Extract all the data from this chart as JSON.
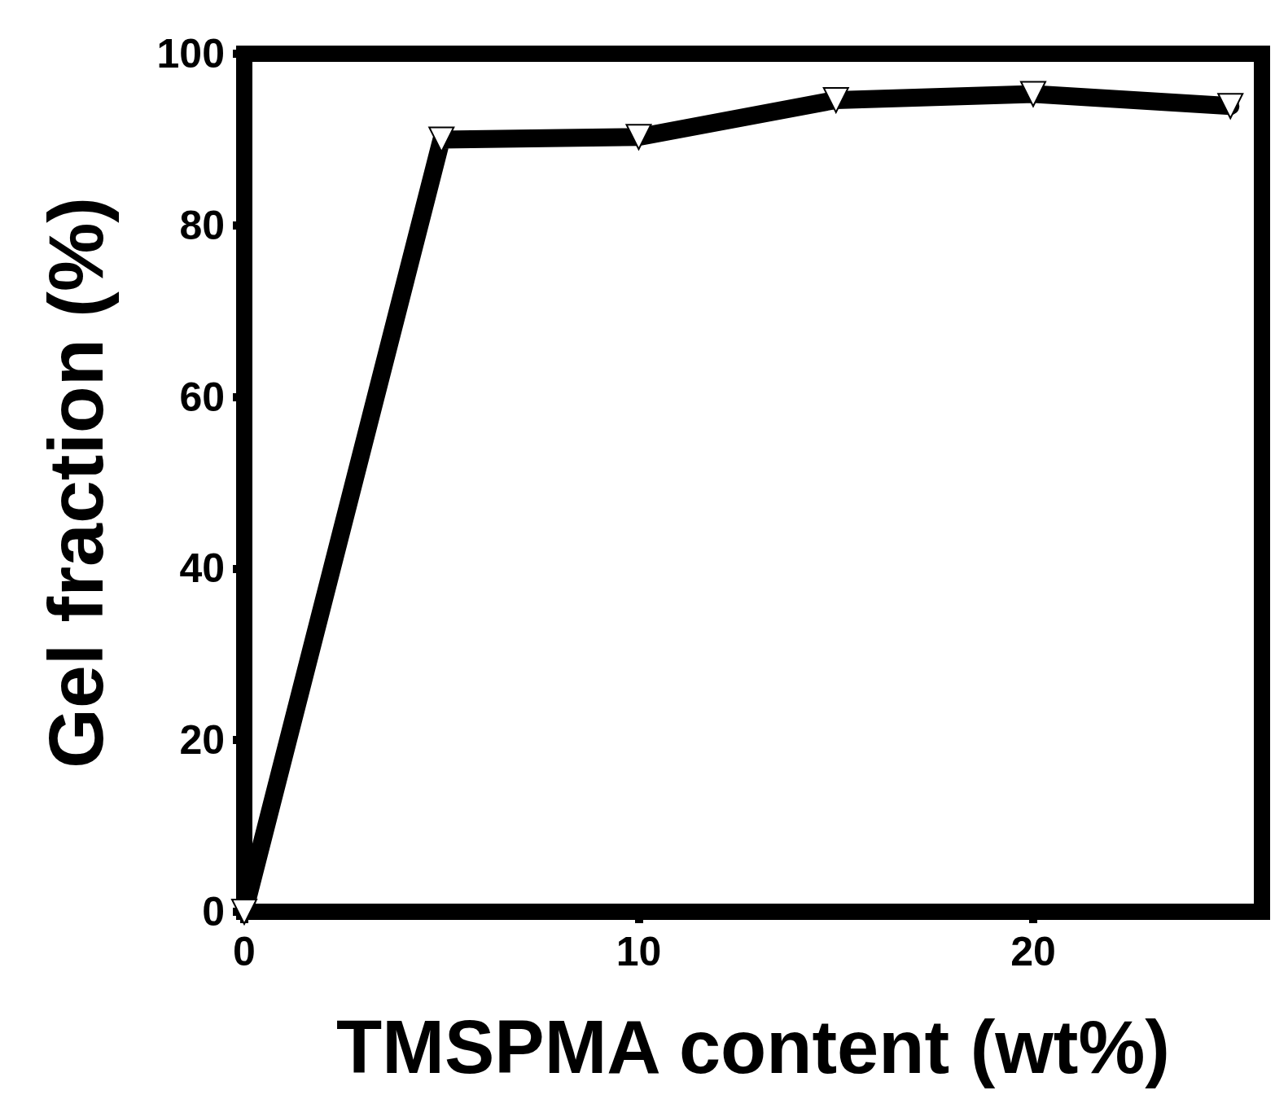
{
  "chart_data": {
    "type": "line",
    "xlabel": "TMSPMA content (wt%)",
    "ylabel": "Gel fraction (%)",
    "x": [
      0,
      5,
      10,
      15,
      20,
      25
    ],
    "series": [
      {
        "color": "#000000",
        "values": [
          0,
          90,
          90.3,
          94.6,
          95.3,
          93.9
        ]
      }
    ],
    "xlim": [
      0,
      25.8
    ],
    "xticks": [
      0,
      10,
      20
    ],
    "ylim": [
      0,
      100
    ],
    "yticks": [
      0,
      20,
      40,
      60,
      80,
      100
    ],
    "grid": false,
    "marker": "triangle",
    "line_style": "solid"
  }
}
